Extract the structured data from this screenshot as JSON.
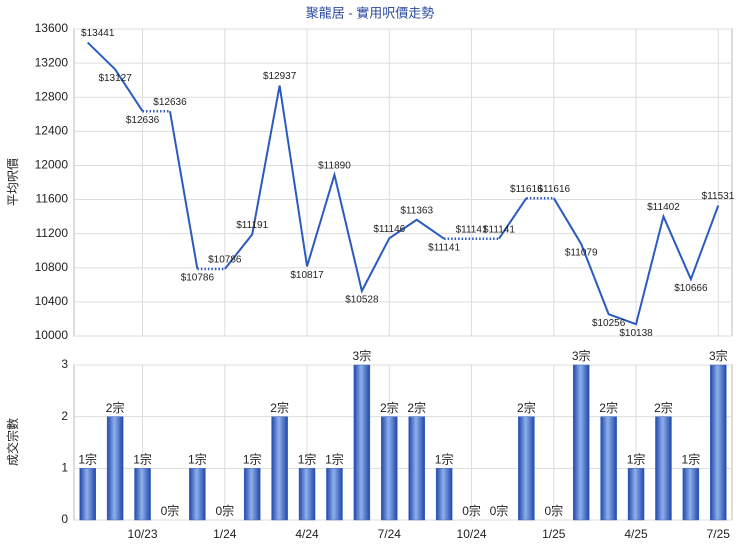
{
  "chart_data": [
    {
      "type": "line",
      "title": "聚龍居 - 實用呎價走勢",
      "y_label": "平均呎價",
      "color": "#2b5bbf",
      "values": [
        13441,
        13127,
        12636,
        12636,
        10786,
        10786,
        11191,
        12937,
        10817,
        11890,
        10528,
        11146,
        11363,
        11141,
        11141,
        11141,
        11616,
        11616,
        11079,
        10256,
        10138,
        11402,
        10666,
        11531
      ],
      "value_labels": [
        "$13441",
        "$13127",
        "$12636",
        "$12636",
        "$10786",
        "$10786",
        "$11191",
        "$12937",
        "$10817",
        "$11890",
        "$10528",
        "$11146",
        "$11363",
        "$11141",
        "$11141",
        "$11141",
        "$11616",
        "$11616",
        "$11079",
        "$10256",
        "$10138",
        "$11402",
        "$10666",
        "$11531"
      ],
      "ylim": [
        10000,
        13600
      ],
      "yticks": [
        10000,
        10400,
        10800,
        11200,
        11600,
        12000,
        12400,
        12800,
        13200,
        13600
      ],
      "grid": true
    },
    {
      "type": "bar",
      "y_label": "成交宗數",
      "color": "#3a63c4",
      "categories": [
        null,
        null,
        "10/23",
        null,
        null,
        "1/24",
        null,
        null,
        "4/24",
        null,
        null,
        "7/24",
        null,
        null,
        "10/24",
        null,
        null,
        "1/25",
        null,
        null,
        "4/25",
        null,
        null,
        "7/25"
      ],
      "values": [
        1,
        2,
        1,
        0,
        1,
        0,
        1,
        2,
        1,
        1,
        3,
        2,
        2,
        1,
        0,
        0,
        2,
        0,
        3,
        2,
        1,
        2,
        1,
        3
      ],
      "value_labels": [
        "1宗",
        "2宗",
        "1宗",
        "0宗",
        "1宗",
        "0宗",
        "1宗",
        "2宗",
        "1宗",
        "1宗",
        "3宗",
        "2宗",
        "2宗",
        "1宗",
        "0宗",
        "0宗",
        "2宗",
        "0宗",
        "3宗",
        "2宗",
        "1宗",
        "2宗",
        "1宗",
        "3宗"
      ],
      "ylim": [
        0,
        3
      ],
      "yticks": [
        0,
        1,
        2,
        3
      ],
      "grid": true
    }
  ]
}
